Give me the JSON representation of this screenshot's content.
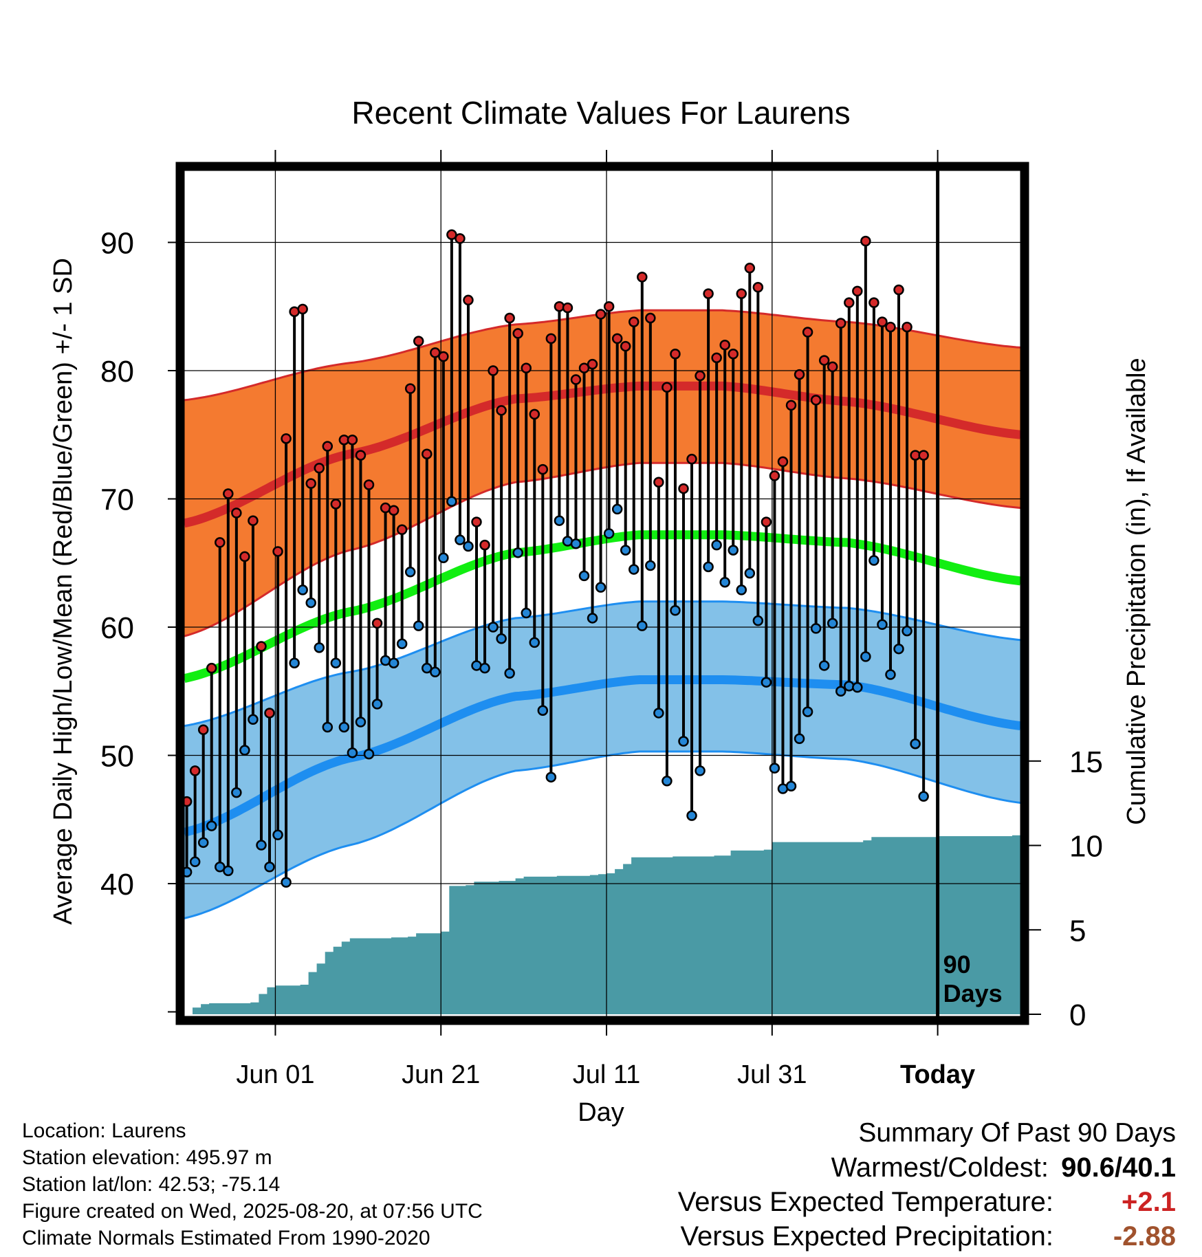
{
  "chart_data": {
    "type": "bar",
    "title": "Recent Climate Values For Laurens",
    "xlabel": "Day",
    "ylabel": "Average Daily High/Low/Mean (Red/Blue/Green) +/- 1 SD",
    "y2label": "Cumulative Precipitation (in), If Available",
    "ylim": [
      30,
      97
    ],
    "y2lim": [
      0,
      22
    ],
    "yticks": [
      "40",
      "50",
      "60",
      "70",
      "80",
      "90"
    ],
    "y2ticks": [
      "0",
      "5",
      "10",
      "15"
    ],
    "xticks": [
      {
        "day": 11,
        "label": "Jun 01"
      },
      {
        "day": 31,
        "label": "Jun 21"
      },
      {
        "day": 51,
        "label": "Jul 11"
      },
      {
        "day": 71,
        "label": "Jul 31"
      },
      {
        "day": 91,
        "label": "Today"
      }
    ],
    "xlim": [
      0,
      101
    ],
    "today_label": "90\nDays",
    "normal_high_mean": [
      [
        0,
        68.1
      ],
      [
        20,
        73.5
      ],
      [
        40,
        77.8
      ],
      [
        55,
        78.8
      ],
      [
        65,
        78.8
      ],
      [
        80,
        77.6
      ],
      [
        101,
        75.0
      ]
    ],
    "normal_high_upper": [
      [
        0,
        77.7
      ],
      [
        20,
        80.6
      ],
      [
        40,
        83.6
      ],
      [
        55,
        84.7
      ],
      [
        65,
        84.7
      ],
      [
        80,
        83.8
      ],
      [
        101,
        81.8
      ]
    ],
    "normal_high_lower": [
      [
        0,
        59.3
      ],
      [
        20,
        66.0
      ],
      [
        40,
        71.3
      ],
      [
        55,
        72.8
      ],
      [
        65,
        72.8
      ],
      [
        80,
        71.6
      ],
      [
        101,
        69.3
      ]
    ],
    "normal_mean": [
      [
        0,
        56.0
      ],
      [
        20,
        61.2
      ],
      [
        40,
        65.8
      ],
      [
        55,
        67.2
      ],
      [
        65,
        67.2
      ],
      [
        80,
        66.6
      ],
      [
        101,
        63.6
      ]
    ],
    "normal_low_mean": [
      [
        0,
        44.0
      ],
      [
        20,
        49.8
      ],
      [
        40,
        54.6
      ],
      [
        55,
        55.9
      ],
      [
        65,
        55.9
      ],
      [
        80,
        55.5
      ],
      [
        101,
        52.3
      ]
    ],
    "normal_low_upper": [
      [
        0,
        52.3
      ],
      [
        20,
        56.5
      ],
      [
        40,
        60.7
      ],
      [
        55,
        62.0
      ],
      [
        65,
        62.0
      ],
      [
        80,
        61.5
      ],
      [
        101,
        59.0
      ]
    ],
    "normal_low_lower": [
      [
        0,
        37.3
      ],
      [
        20,
        43.0
      ],
      [
        40,
        48.8
      ],
      [
        55,
        50.3
      ],
      [
        65,
        50.3
      ],
      [
        80,
        49.7
      ],
      [
        101,
        46.3
      ]
    ],
    "highs": [
      46.4,
      48.8,
      52.0,
      56.8,
      66.6,
      70.4,
      68.9,
      65.5,
      68.3,
      58.5,
      53.3,
      65.9,
      74.7,
      84.6,
      84.8,
      71.2,
      72.4,
      74.1,
      69.6,
      74.6,
      74.6,
      73.4,
      71.1,
      60.3,
      69.3,
      69.1,
      67.6,
      78.6,
      82.3,
      73.5,
      81.4,
      81.1,
      90.6,
      90.3,
      85.5,
      68.2,
      66.4,
      80.0,
      76.9,
      84.1,
      82.9,
      80.2,
      76.6,
      72.3,
      82.5,
      85.0,
      84.9,
      79.3,
      80.2,
      80.5,
      84.4,
      85.0,
      82.5,
      81.9,
      83.8,
      87.3,
      84.1,
      71.3,
      78.7,
      81.3,
      70.8,
      73.1,
      79.6,
      86.0,
      81.0,
      82.0,
      81.3,
      86.0,
      88.0,
      86.5,
      68.2,
      71.8,
      72.9,
      77.3,
      79.7,
      83.0,
      77.7,
      80.8,
      80.3,
      83.7,
      85.3,
      86.2,
      90.1,
      85.3,
      83.8,
      83.4,
      86.3,
      83.4,
      73.4,
      73.4
    ],
    "lows": [
      40.9,
      41.7,
      43.2,
      44.5,
      41.3,
      41.0,
      47.1,
      50.4,
      52.8,
      43.0,
      41.3,
      43.8,
      40.1,
      57.2,
      62.9,
      61.9,
      58.4,
      52.2,
      57.2,
      52.2,
      50.2,
      52.6,
      50.1,
      54.0,
      57.4,
      57.2,
      58.7,
      64.3,
      60.1,
      56.8,
      56.5,
      65.4,
      69.8,
      66.8,
      66.3,
      57.0,
      56.8,
      60.0,
      59.1,
      56.4,
      65.8,
      61.1,
      58.8,
      53.5,
      48.3,
      68.3,
      66.7,
      66.5,
      64.0,
      60.7,
      63.1,
      67.3,
      69.2,
      66.0,
      64.5,
      60.1,
      64.8,
      53.3,
      48.0,
      61.3,
      51.1,
      45.3,
      48.8,
      64.7,
      66.4,
      63.5,
      66.0,
      62.9,
      64.2,
      60.5,
      55.7,
      49.0,
      47.4,
      47.6,
      51.3,
      53.4,
      59.9,
      57.0,
      60.3,
      55.0,
      55.4,
      55.3,
      57.7,
      65.2,
      60.2,
      56.3,
      58.3,
      59.7,
      50.9,
      46.8
    ],
    "precip": [
      [
        0,
        0.0
      ],
      [
        1,
        0.4
      ],
      [
        2,
        0.6
      ],
      [
        3,
        0.65
      ],
      [
        8,
        0.7
      ],
      [
        9,
        1.2
      ],
      [
        10,
        1.6
      ],
      [
        11,
        1.7
      ],
      [
        14,
        1.75
      ],
      [
        15,
        2.5
      ],
      [
        16,
        3.0
      ],
      [
        17,
        3.7
      ],
      [
        18,
        4.0
      ],
      [
        19,
        4.3
      ],
      [
        20,
        4.5
      ],
      [
        25,
        4.55
      ],
      [
        27,
        4.6
      ],
      [
        28,
        4.8
      ],
      [
        31,
        4.9
      ],
      [
        32,
        7.6
      ],
      [
        34,
        7.65
      ],
      [
        35,
        7.85
      ],
      [
        38,
        7.9
      ],
      [
        40,
        8.05
      ],
      [
        41,
        8.15
      ],
      [
        45,
        8.2
      ],
      [
        49,
        8.25
      ],
      [
        50,
        8.3
      ],
      [
        51,
        8.35
      ],
      [
        52,
        8.6
      ],
      [
        53,
        8.9
      ],
      [
        54,
        9.3
      ],
      [
        59,
        9.35
      ],
      [
        64,
        9.4
      ],
      [
        66,
        9.7
      ],
      [
        70,
        9.75
      ],
      [
        71,
        10.2
      ],
      [
        82,
        10.3
      ],
      [
        83,
        10.5
      ],
      [
        91,
        10.55
      ],
      [
        100,
        10.6
      ]
    ],
    "grid": true
  },
  "info": {
    "location": "Location: Laurens",
    "elevation": "Station elevation: 495.97 m",
    "latlon": "Station lat/lon: 42.53; -75.14",
    "created": "Figure created on Wed, 2025-08-20, at 07:56 UTC",
    "normals": "Climate Normals Estimated From 1990-2020"
  },
  "summary": {
    "title": "Summary Of Past 90 Days",
    "warm_cold_label": "Warmest/Coldest:",
    "warm_cold_value": "90.6/40.1",
    "temp_label": "Versus Expected Temperature:",
    "temp_value": "+2.1",
    "temp_color": "#cc2222",
    "precip_label": "Versus Expected Precipitation:",
    "precip_value": "-2.88",
    "precip_color": "#a0522d"
  },
  "colors": {
    "high_band": "#f47a30",
    "high_line": "#d42a2a",
    "low_band": "#83c1e8",
    "low_line": "#1e8ef0",
    "mean_line": "#11ee11",
    "precip_fill": "#4a9aa5",
    "high_dot": "#d42a2a",
    "low_dot": "#2486d6"
  }
}
